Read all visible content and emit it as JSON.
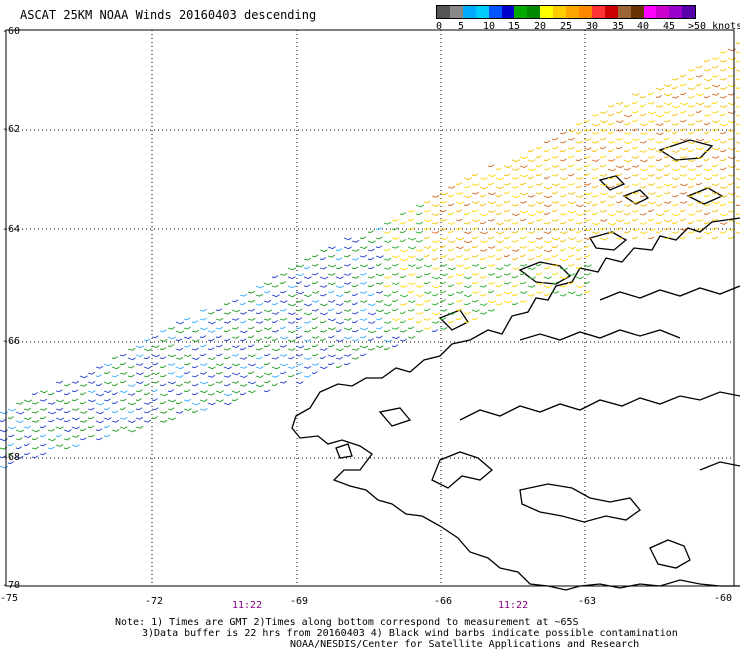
{
  "title": "ASCAT 25KM NOAA Winds 20160403 descending",
  "colorbar": {
    "colors": [
      "#555555",
      "#888888",
      "#00aaff",
      "#00ccff",
      "#0055ff",
      "#0000cc",
      "#00aa00",
      "#008800",
      "#ffff00",
      "#ffcc00",
      "#ffa500",
      "#ff8800",
      "#ff3333",
      "#cc0000",
      "#996633",
      "#663300",
      "#ff00ff",
      "#cc00cc",
      "#9900cc",
      "#5500aa"
    ],
    "labels": [
      "0",
      "5",
      "10",
      "15",
      "20",
      "25",
      "30",
      "35",
      "40",
      "45",
      ">50 knots"
    ]
  },
  "axes": {
    "lat_labels": [
      "-60",
      "-62",
      "-64",
      "-66",
      "-68",
      "-70"
    ],
    "lon_labels": [
      "-75",
      "-72",
      "-69",
      "-66",
      "-63",
      "-60"
    ]
  },
  "time_labels": [
    "11:22",
    "11:22"
  ],
  "notes": [
    "Note: 1) Times are GMT 2)Times along bottom correspond to measurement at ~65S",
    "3)Data buffer is 22 hrs from 20160403 4) Black wind barbs indicate possible contamination",
    "NOAA/NESDIS/Center for Satellite Applications and Research"
  ]
}
